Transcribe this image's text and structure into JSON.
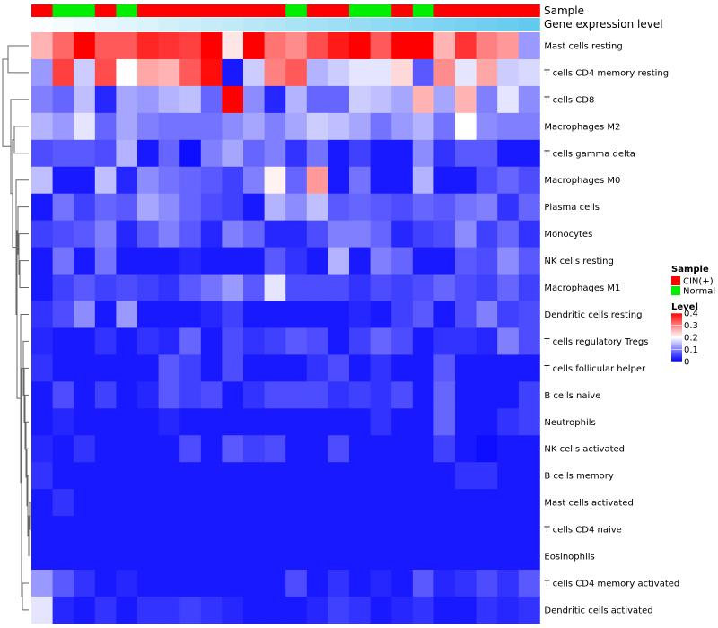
{
  "chart_data": {
    "type": "heatmap",
    "title": "",
    "annotations": {
      "sample_label": "Sample",
      "gene_label": "Gene expression level",
      "sample": [
        "CIN(+)",
        "Normal",
        "Normal",
        "CIN(+)",
        "Normal",
        "CIN(+)",
        "CIN(+)",
        "CIN(+)",
        "CIN(+)",
        "CIN(+)",
        "CIN(+)",
        "CIN(+)",
        "Normal",
        "CIN(+)",
        "CIN(+)",
        "Normal",
        "Normal",
        "CIN(+)",
        "Normal",
        "CIN(+)",
        "CIN(+)",
        "CIN(+)",
        "CIN(+)",
        "CIN(+)"
      ],
      "gene_expression_level": [
        0.02,
        0.06,
        0.1,
        0.14,
        0.18,
        0.22,
        0.27,
        0.31,
        0.35,
        0.39,
        0.43,
        0.47,
        0.51,
        0.55,
        0.59,
        0.63,
        0.67,
        0.71,
        0.75,
        0.79,
        0.83,
        0.87,
        0.91,
        0.96
      ]
    },
    "rows": [
      "Mast cells resting",
      "T cells CD4 memory resting",
      "T cells CD8",
      "Macrophages M2",
      "T cells gamma delta",
      "Macrophages M0",
      "Plasma cells",
      "Monocytes",
      "NK cells resting",
      "Macrophages M1",
      "Dendritic cells resting",
      "T cells regulatory  Tregs",
      "T cells follicular helper",
      "B cells naive",
      "Neutrophils",
      "NK cells activated",
      "B cells memory",
      "Mast cells activated",
      "T cells CD4 naive",
      "Eosinophils",
      "T cells CD4 memory activated",
      "Dendritic cells activated"
    ],
    "values": [
      [
        0.26,
        0.32,
        0.4,
        0.33,
        0.33,
        0.37,
        0.36,
        0.35,
        0.4,
        0.22,
        0.4,
        0.31,
        0.29,
        0.34,
        0.38,
        0.4,
        0.33,
        0.4,
        0.4,
        0.26,
        0.36,
        0.3,
        0.28,
        0.12
      ],
      [
        0.12,
        0.35,
        0.16,
        0.34,
        0.2,
        0.27,
        0.26,
        0.33,
        0.39,
        0.02,
        0.16,
        0.3,
        0.33,
        0.14,
        0.16,
        0.18,
        0.18,
        0.23,
        0.07,
        0.29,
        0.18,
        0.27,
        0.16,
        0.17
      ],
      [
        0.1,
        0.08,
        0.15,
        0.03,
        0.13,
        0.12,
        0.14,
        0.15,
        0.08,
        0.4,
        0.11,
        0.03,
        0.14,
        0.08,
        0.08,
        0.16,
        0.15,
        0.13,
        0.26,
        0.13,
        0.26,
        0.1,
        0.18,
        0.11
      ],
      [
        0.14,
        0.12,
        0.18,
        0.08,
        0.13,
        0.1,
        0.09,
        0.09,
        0.09,
        0.11,
        0.13,
        0.1,
        0.13,
        0.16,
        0.15,
        0.13,
        0.09,
        0.12,
        0.14,
        0.09,
        0.2,
        0.11,
        0.1,
        0.1
      ],
      [
        0.06,
        0.07,
        0.07,
        0.06,
        0.14,
        0.02,
        0.08,
        0.01,
        0.1,
        0.13,
        0.08,
        0.1,
        0.04,
        0.09,
        0.02,
        0.05,
        0.02,
        0.02,
        0.11,
        0.04,
        0.07,
        0.07,
        0.02,
        0.02
      ],
      [
        0.15,
        0.02,
        0.02,
        0.15,
        0.03,
        0.11,
        0.09,
        0.08,
        0.07,
        0.05,
        0.1,
        0.21,
        0.08,
        0.28,
        0.02,
        0.09,
        0.02,
        0.02,
        0.14,
        0.02,
        0.02,
        0.06,
        0.08,
        0.06
      ],
      [
        0.02,
        0.09,
        0.05,
        0.08,
        0.07,
        0.13,
        0.11,
        0.08,
        0.06,
        0.05,
        0.02,
        0.14,
        0.11,
        0.15,
        0.07,
        0.08,
        0.07,
        0.06,
        0.08,
        0.07,
        0.09,
        0.1,
        0.04,
        0.08
      ],
      [
        0.05,
        0.06,
        0.07,
        0.1,
        0.03,
        0.07,
        0.1,
        0.07,
        0.03,
        0.1,
        0.08,
        0.03,
        0.03,
        0.06,
        0.1,
        0.1,
        0.08,
        0.03,
        0.05,
        0.06,
        0.11,
        0.05,
        0.08,
        0.04
      ],
      [
        0.02,
        0.09,
        0.02,
        0.09,
        0.02,
        0.02,
        0.02,
        0.03,
        0.02,
        0.02,
        0.02,
        0.07,
        0.04,
        0.02,
        0.14,
        0.02,
        0.1,
        0.08,
        0.02,
        0.02,
        0.07,
        0.06,
        0.11,
        0.07
      ],
      [
        0.02,
        0.05,
        0.07,
        0.05,
        0.06,
        0.05,
        0.04,
        0.07,
        0.09,
        0.12,
        0.07,
        0.18,
        0.06,
        0.06,
        0.06,
        0.04,
        0.06,
        0.05,
        0.06,
        0.08,
        0.06,
        0.05,
        0.08,
        0.05
      ],
      [
        0.04,
        0.06,
        0.11,
        0.02,
        0.12,
        0.02,
        0.02,
        0.02,
        0.03,
        0.05,
        0.02,
        0.02,
        0.02,
        0.02,
        0.02,
        0.03,
        0.02,
        0.05,
        0.07,
        0.02,
        0.06,
        0.1,
        0.05,
        0.06
      ],
      [
        0.03,
        0.02,
        0.02,
        0.04,
        0.02,
        0.04,
        0.03,
        0.08,
        0.02,
        0.06,
        0.04,
        0.05,
        0.07,
        0.06,
        0.02,
        0.05,
        0.08,
        0.06,
        0.02,
        0.04,
        0.04,
        0.03,
        0.1,
        0.06
      ],
      [
        0.04,
        0.02,
        0.02,
        0.02,
        0.02,
        0.02,
        0.07,
        0.05,
        0.02,
        0.06,
        0.02,
        0.02,
        0.02,
        0.04,
        0.06,
        0.02,
        0.04,
        0.02,
        0.02,
        0.07,
        0.02,
        0.02,
        0.02,
        0.02
      ],
      [
        0.02,
        0.06,
        0.02,
        0.05,
        0.02,
        0.03,
        0.07,
        0.05,
        0.06,
        0.02,
        0.04,
        0.06,
        0.06,
        0.06,
        0.04,
        0.05,
        0.04,
        0.06,
        0.02,
        0.08,
        0.02,
        0.02,
        0.02,
        0.05
      ],
      [
        0.02,
        0.03,
        0.02,
        0.02,
        0.02,
        0.02,
        0.03,
        0.02,
        0.02,
        0.02,
        0.02,
        0.02,
        0.02,
        0.02,
        0.02,
        0.02,
        0.04,
        0.02,
        0.02,
        0.08,
        0.02,
        0.02,
        0.04,
        0.05
      ],
      [
        0.03,
        0.02,
        0.04,
        0.02,
        0.02,
        0.02,
        0.02,
        0.06,
        0.02,
        0.07,
        0.05,
        0.06,
        0.02,
        0.02,
        0.06,
        0.02,
        0.02,
        0.02,
        0.02,
        0.05,
        0.02,
        0.01,
        0.02,
        0.02
      ],
      [
        0.04,
        0.02,
        0.02,
        0.02,
        0.02,
        0.02,
        0.02,
        0.02,
        0.02,
        0.02,
        0.02,
        0.02,
        0.02,
        0.02,
        0.02,
        0.02,
        0.02,
        0.02,
        0.02,
        0.02,
        0.04,
        0.04,
        0.02,
        0.02
      ],
      [
        0.02,
        0.04,
        0.02,
        0.02,
        0.02,
        0.02,
        0.02,
        0.02,
        0.02,
        0.02,
        0.02,
        0.02,
        0.02,
        0.02,
        0.02,
        0.02,
        0.02,
        0.02,
        0.02,
        0.02,
        0.02,
        0.02,
        0.02,
        0.02
      ],
      [
        0.02,
        0.02,
        0.02,
        0.02,
        0.02,
        0.02,
        0.02,
        0.02,
        0.02,
        0.02,
        0.02,
        0.02,
        0.02,
        0.02,
        0.02,
        0.02,
        0.02,
        0.02,
        0.02,
        0.02,
        0.02,
        0.02,
        0.02,
        0.02
      ],
      [
        0.02,
        0.02,
        0.02,
        0.02,
        0.02,
        0.02,
        0.02,
        0.02,
        0.02,
        0.02,
        0.02,
        0.02,
        0.02,
        0.02,
        0.02,
        0.02,
        0.02,
        0.02,
        0.02,
        0.02,
        0.02,
        0.02,
        0.02,
        0.02
      ],
      [
        0.12,
        0.07,
        0.04,
        0.02,
        0.03,
        0.02,
        0.02,
        0.02,
        0.02,
        0.02,
        0.02,
        0.02,
        0.06,
        0.02,
        0.04,
        0.02,
        0.03,
        0.02,
        0.07,
        0.03,
        0.04,
        0.06,
        0.04,
        0.07
      ],
      [
        0.18,
        0.03,
        0.02,
        0.04,
        0.02,
        0.04,
        0.04,
        0.05,
        0.04,
        0.03,
        0.02,
        0.02,
        0.02,
        0.03,
        0.05,
        0.04,
        0.02,
        0.03,
        0.04,
        0.02,
        0.02,
        0.04,
        0.03,
        0.04
      ]
    ],
    "legend": {
      "sample_title": "Sample",
      "sample_entries": [
        {
          "label": "CIN(+)",
          "color": "#ff0000"
        },
        {
          "label": "Normal",
          "color": "#00ee00"
        }
      ],
      "level_title": "Level",
      "level_ticks": [
        "0.4",
        "0.3",
        "0.2",
        "0.1",
        "0"
      ],
      "level_range": [
        0,
        0.4
      ]
    },
    "colors": {
      "low": "#0000ff",
      "mid": "#ffffff",
      "high": "#ff0000",
      "gene_annotation": "#5bc8ee",
      "dendrogram": "#666666"
    }
  }
}
